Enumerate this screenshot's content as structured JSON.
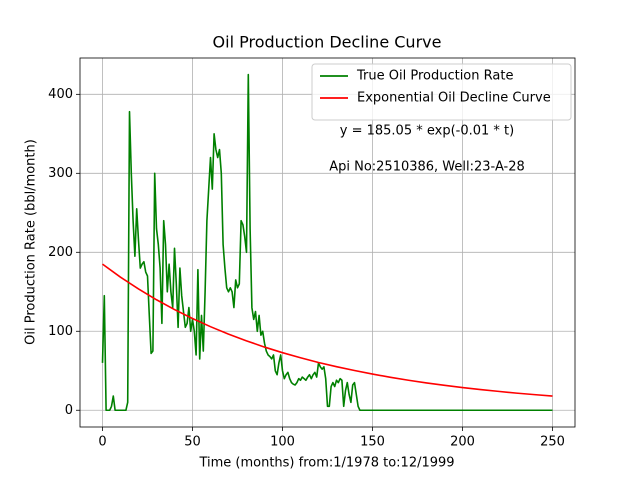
{
  "chart_data": {
    "type": "line",
    "title": "Oil Production Decline Curve",
    "xlabel": "Time (months) from:1/1978 to:12/1999",
    "ylabel": "Oil Production Rate (bbl/month)",
    "annotations": [
      "y = 185.05 * exp(-0.01 * t)",
      "Api No:2510386, Well:23-A-28"
    ],
    "xlim": [
      -12.5,
      262.5
    ],
    "xticks": [
      0,
      50,
      100,
      150,
      200,
      250
    ],
    "ylim": [
      -21.2,
      446
    ],
    "yticks": [
      0,
      100,
      200,
      300,
      400
    ],
    "grid": true,
    "legend": "upper right",
    "series": [
      {
        "name": "True Oil Production Rate",
        "color": "#008000",
        "x": [
          0,
          1,
          2,
          3,
          4,
          5,
          6,
          7,
          8,
          10,
          12,
          13,
          14,
          15,
          16,
          17,
          18,
          19,
          20,
          21,
          22,
          23,
          24,
          25,
          26,
          27,
          28,
          29,
          30,
          31,
          32,
          33,
          34,
          35,
          36,
          37,
          38,
          39,
          40,
          41,
          42,
          43,
          44,
          45,
          46,
          47,
          48,
          49,
          50,
          51,
          52,
          53,
          54,
          55,
          56,
          57,
          58,
          59,
          60,
          61,
          62,
          63,
          64,
          65,
          66,
          67,
          68,
          69,
          70,
          71,
          72,
          73,
          74,
          75,
          76,
          77,
          78,
          79,
          80,
          81,
          82,
          83,
          84,
          85,
          86,
          87,
          88,
          89,
          90,
          91,
          92,
          93,
          94,
          95,
          96,
          97,
          98,
          99,
          100,
          101,
          102,
          103,
          104,
          105,
          106,
          107,
          108,
          109,
          110,
          111,
          112,
          113,
          114,
          115,
          116,
          117,
          118,
          119,
          120,
          121,
          122,
          123,
          124,
          125,
          126,
          127,
          128,
          129,
          130,
          131,
          132,
          133,
          134,
          135,
          136,
          137,
          138,
          139,
          140,
          141,
          142,
          143,
          144,
          250
        ],
        "values": [
          60,
          145,
          0,
          0,
          0,
          5,
          18,
          0,
          0,
          0,
          0,
          0,
          10,
          378,
          300,
          240,
          195,
          255,
          215,
          180,
          185,
          188,
          175,
          170,
          120,
          72,
          75,
          300,
          230,
          210,
          180,
          110,
          240,
          210,
          150,
          185,
          150,
          130,
          205,
          160,
          105,
          180,
          145,
          125,
          105,
          110,
          130,
          100,
          115,
          100,
          70,
          178,
          65,
          120,
          75,
          150,
          240,
          280,
          320,
          280,
          350,
          330,
          320,
          330,
          300,
          210,
          180,
          155,
          150,
          155,
          150,
          130,
          165,
          155,
          160,
          240,
          235,
          220,
          200,
          425,
          230,
          130,
          115,
          125,
          100,
          120,
          95,
          100,
          85,
          75,
          70,
          68,
          65,
          70,
          50,
          45,
          60,
          70,
          50,
          40,
          45,
          48,
          40,
          35,
          33,
          32,
          35,
          40,
          38,
          42,
          40,
          38,
          42,
          45,
          40,
          45,
          48,
          42,
          60,
          55,
          52,
          55,
          40,
          5,
          5,
          30,
          35,
          30,
          38,
          35,
          40,
          38,
          5,
          25,
          35,
          20,
          10,
          32,
          35,
          20,
          5,
          0,
          0,
          0
        ]
      },
      {
        "name": "Exponential Oil Decline Curve",
        "color": "#ff0000",
        "x": [
          0,
          10,
          20,
          30,
          40,
          50,
          60,
          70,
          80,
          90,
          100,
          110,
          120,
          130,
          140,
          150,
          160,
          170,
          180,
          190,
          200,
          210,
          220,
          230,
          240,
          250
        ],
        "values": [
          185,
          168.5,
          153.6,
          139.9,
          127.5,
          116.2,
          105.8,
          96.4,
          87.9,
          80,
          72.9,
          66.5,
          60.5,
          55.2,
          50.3,
          45.8,
          41.7,
          38,
          34.6,
          31.6,
          28.7,
          26.2,
          23.9,
          21.7,
          19.8,
          18
        ]
      }
    ]
  }
}
